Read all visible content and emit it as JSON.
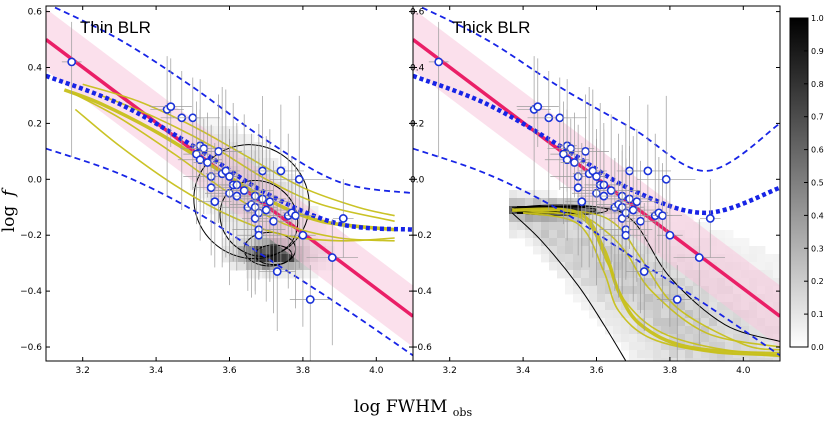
{
  "chart_data": {
    "type": "scatter",
    "xlabel_main": "log FWHM",
    "xlabel_sub": "obs",
    "ylabel_main": "log",
    "ylabel_var": "f",
    "xlim": [
      3.1,
      4.1
    ],
    "ylim": [
      -0.65,
      0.62
    ],
    "xticks": [
      3.2,
      3.4,
      3.6,
      3.8,
      4.0
    ],
    "yticks": [
      -0.6,
      -0.4,
      -0.2,
      0.0,
      0.2,
      0.4,
      0.6
    ],
    "ytick_labels": [
      "−0.6",
      "−0.4",
      "−0.2",
      "0.0",
      "0.2",
      "0.4",
      "0.6"
    ],
    "colorbar": {
      "range": [
        0.0,
        1.0
      ],
      "ticks": [
        0.0,
        0.1,
        0.2,
        0.3,
        0.4,
        0.5,
        0.6,
        0.7,
        0.8,
        0.9,
        1.0
      ],
      "tick_labels": [
        "0.0",
        "0.1",
        "0.2",
        "0.3",
        "0.4",
        "0.5",
        "0.6",
        "0.7",
        "0.8",
        "0.9",
        "1.0"
      ]
    },
    "points": [
      [
        3.17,
        0.42
      ],
      [
        3.43,
        0.25
      ],
      [
        3.44,
        0.26
      ],
      [
        3.47,
        0.22
      ],
      [
        3.5,
        0.22
      ],
      [
        3.52,
        0.12
      ],
      [
        3.51,
        0.09
      ],
      [
        3.53,
        0.11
      ],
      [
        3.52,
        0.07
      ],
      [
        3.54,
        0.06
      ],
      [
        3.55,
        0.01
      ],
      [
        3.57,
        0.1
      ],
      [
        3.55,
        -0.03
      ],
      [
        3.56,
        -0.08
      ],
      [
        3.58,
        0.02
      ],
      [
        3.59,
        0.03
      ],
      [
        3.6,
        -0.05
      ],
      [
        3.6,
        0.01
      ],
      [
        3.61,
        -0.02
      ],
      [
        3.62,
        -0.02
      ],
      [
        3.62,
        -0.06
      ],
      [
        3.64,
        -0.04
      ],
      [
        3.65,
        -0.1
      ],
      [
        3.66,
        -0.09
      ],
      [
        3.67,
        -0.06
      ],
      [
        3.67,
        -0.1
      ],
      [
        3.67,
        -0.14
      ],
      [
        3.68,
        -0.12
      ],
      [
        3.68,
        -0.18
      ],
      [
        3.68,
        -0.2
      ],
      [
        3.69,
        -0.07
      ],
      [
        3.69,
        0.03
      ],
      [
        3.7,
        -0.11
      ],
      [
        3.71,
        -0.08
      ],
      [
        3.72,
        -0.15
      ],
      [
        3.73,
        -0.33
      ],
      [
        3.74,
        0.03
      ],
      [
        3.76,
        -0.13
      ],
      [
        3.77,
        -0.12
      ],
      [
        3.78,
        -0.13
      ],
      [
        3.79,
        0.0
      ],
      [
        3.8,
        -0.2
      ],
      [
        3.82,
        -0.43
      ],
      [
        3.88,
        -0.28
      ],
      [
        3.91,
        -0.14
      ]
    ],
    "series": [
      {
        "name": "relation",
        "color": "#ea1f67",
        "x": [
          3.1,
          4.1
        ],
        "y": [
          0.5,
          -0.49
        ]
      },
      {
        "name": "relation-band",
        "color": "#f7c6dc",
        "x": [
          3.1,
          4.1
        ],
        "y_upper": [
          0.61,
          -0.38
        ],
        "y_lower": [
          0.39,
          -0.6
        ]
      }
    ],
    "panels": [
      {
        "label": "Thin BLR",
        "model_mean": {
          "x": [
            3.1,
            3.3,
            3.5,
            3.7,
            3.9,
            4.1
          ],
          "y": [
            0.37,
            0.27,
            0.12,
            -0.05,
            -0.16,
            -0.18
          ]
        },
        "model_upper": {
          "x": [
            3.1,
            3.3,
            3.5,
            3.7,
            3.9,
            4.1
          ],
          "y": [
            0.63,
            0.5,
            0.33,
            0.14,
            -0.01,
            -0.05
          ]
        },
        "model_lower": {
          "x": [
            3.1,
            3.3,
            3.5,
            3.7,
            3.9,
            4.1
          ],
          "y": [
            0.11,
            0.02,
            -0.11,
            -0.28,
            -0.45,
            -0.63
          ]
        },
        "tracks": [
          {
            "x": [
              3.15,
              3.25,
              3.4,
              3.55,
              3.7,
              3.85,
              4.05
            ],
            "y": [
              0.32,
              0.27,
              0.17,
              0.05,
              -0.07,
              -0.15,
              -0.18
            ]
          },
          {
            "x": [
              3.17,
              3.3,
              3.45,
              3.6,
              3.75,
              3.9,
              4.05
            ],
            "y": [
              0.31,
              0.22,
              0.09,
              -0.05,
              -0.16,
              -0.21,
              -0.22
            ]
          },
          {
            "x": [
              3.2,
              3.35,
              3.5,
              3.65,
              3.8,
              3.95,
              4.05
            ],
            "y": [
              0.34,
              0.28,
              0.19,
              0.08,
              -0.03,
              -0.1,
              -0.13
            ]
          },
          {
            "x": [
              3.18,
              3.3,
              3.45,
              3.6,
              3.75,
              3.9,
              4.05
            ],
            "y": [
              0.25,
              0.12,
              -0.02,
              -0.13,
              -0.2,
              -0.22,
              -0.21
            ]
          },
          {
            "x": [
              3.25,
              3.4,
              3.55,
              3.7,
              3.85,
              4.05
            ],
            "y": [
              0.3,
              0.22,
              0.12,
              0.0,
              -0.09,
              -0.15
            ]
          }
        ]
      },
      {
        "label": "Thick BLR",
        "model_mean": {
          "x": [
            3.1,
            3.3,
            3.5,
            3.7,
            3.9,
            4.1
          ],
          "y": [
            0.37,
            0.27,
            0.12,
            -0.04,
            -0.12,
            -0.03
          ]
        },
        "model_upper": {
          "x": [
            3.1,
            3.3,
            3.5,
            3.7,
            3.9,
            4.1
          ],
          "y": [
            0.63,
            0.5,
            0.33,
            0.18,
            0.03,
            0.2
          ]
        },
        "model_lower": {
          "x": [
            3.1,
            3.3,
            3.5,
            3.7,
            3.9,
            4.1
          ],
          "y": [
            0.11,
            0.02,
            -0.11,
            -0.28,
            -0.45,
            -0.63
          ]
        },
        "tracks": [
          {
            "x": [
              3.37,
              3.55,
              3.62,
              3.66,
              3.72,
              3.85,
              4.1
            ],
            "y": [
              -0.11,
              -0.12,
              -0.25,
              -0.4,
              -0.52,
              -0.6,
              -0.63
            ]
          },
          {
            "x": [
              3.38,
              3.55,
              3.62,
              3.68,
              3.75,
              3.9,
              4.1
            ],
            "y": [
              -0.11,
              -0.13,
              -0.18,
              -0.26,
              -0.4,
              -0.55,
              -0.6
            ]
          },
          {
            "x": [
              3.4,
              3.56,
              3.63,
              3.68,
              3.78,
              3.95,
              4.1
            ],
            "y": [
              -0.12,
              -0.14,
              -0.3,
              -0.44,
              -0.55,
              -0.61,
              -0.62
            ]
          },
          {
            "x": [
              3.42,
              3.58,
              3.66,
              3.72,
              3.82,
              4.0,
              4.1
            ],
            "y": [
              -0.11,
              -0.12,
              -0.17,
              -0.28,
              -0.46,
              -0.59,
              -0.61
            ]
          },
          {
            "x": [
              3.4,
              3.55,
              3.62,
              3.66,
              3.75,
              3.92,
              4.1
            ],
            "y": [
              -0.12,
              -0.16,
              -0.33,
              -0.47,
              -0.57,
              -0.62,
              -0.63
            ]
          }
        ]
      }
    ]
  },
  "colors": {
    "relation": "#ea1f67",
    "band": "#f7c6dc",
    "model": "#1724e6",
    "tracks": "#c7c01a",
    "points_edge": "#1a33d8"
  }
}
